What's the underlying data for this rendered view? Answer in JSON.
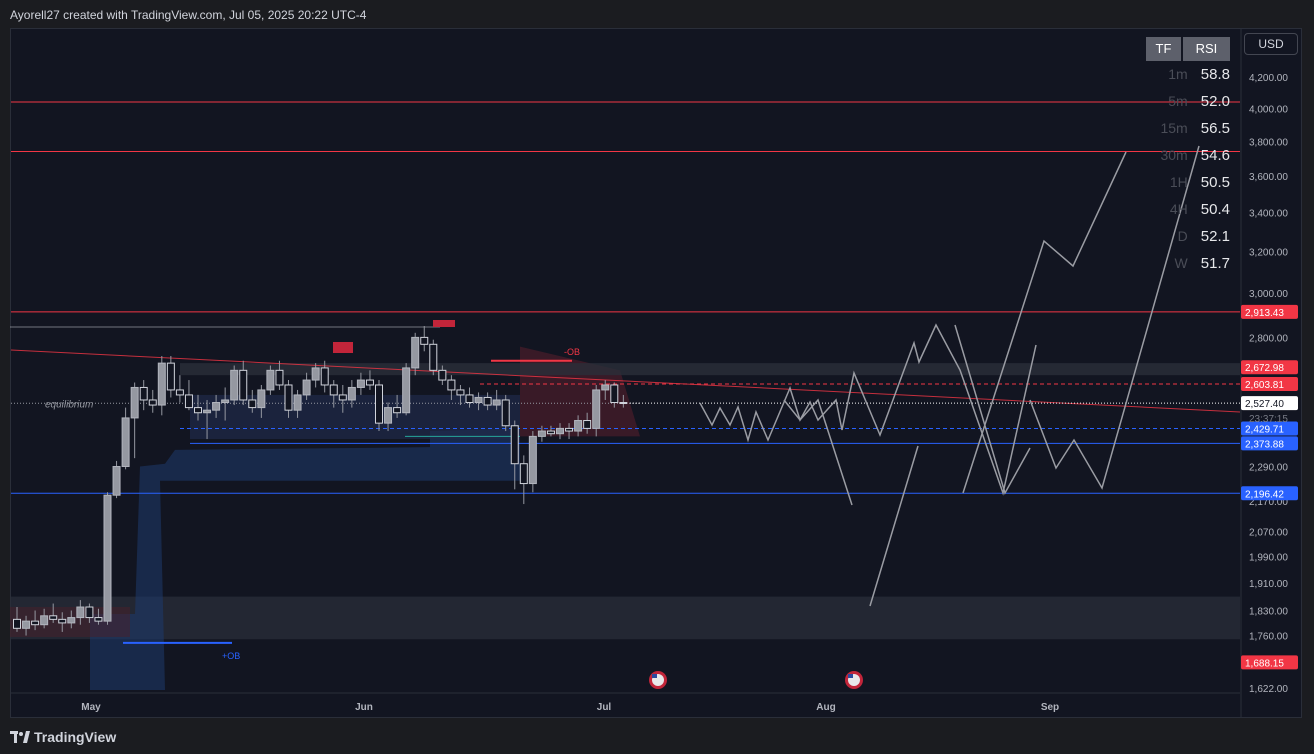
{
  "header": {
    "credit": "Ayorell27 created with TradingView.com, Jul 05, 2025 20:22 UTC-4"
  },
  "footer": {
    "brand": "TradingView"
  },
  "currency_button": "USD",
  "rsi_table": {
    "headers": [
      "TF",
      "RSI"
    ],
    "rows": [
      {
        "tf": "1m",
        "rsi": "58.8"
      },
      {
        "tf": "5m",
        "rsi": "52.0"
      },
      {
        "tf": "15m",
        "rsi": "56.5"
      },
      {
        "tf": "30m",
        "rsi": "54.6"
      },
      {
        "tf": "1H",
        "rsi": "50.5"
      },
      {
        "tf": "4H",
        "rsi": "50.4"
      },
      {
        "tf": "D",
        "rsi": "52.1"
      },
      {
        "tf": "W",
        "rsi": "51.7"
      }
    ]
  },
  "colors": {
    "background": "#121521",
    "up_candle": "#9598a1",
    "down_candle": "#d1d4dc",
    "resistance": "#f23645",
    "support": "#2962ff",
    "projection": "#9a9ca3",
    "zone_blue": "#1e3a6e",
    "zone_gray": "#2a2e39"
  },
  "chart_data": {
    "type": "candlestick",
    "title": "",
    "y_scale": "log",
    "ylim": [
      1622,
      4300
    ],
    "y_ticks": [
      "4,200.00",
      "4,000.00",
      "3,800.00",
      "3,600.00",
      "3,400.00",
      "3,200.00",
      "3,000.00",
      "2,800.00",
      "2,290.00",
      "2,170.00",
      "2,070.00",
      "1,990.00",
      "1,910.00",
      "1,830.00",
      "1,760.00",
      "1,622.00"
    ],
    "x_ticks": [
      "May",
      "Jun",
      "Jul",
      "Aug",
      "Sep"
    ],
    "price_labels": [
      {
        "text": "2,913.43",
        "value": 2913.43,
        "color": "#f23645"
      },
      {
        "text": "2,672.98",
        "value": 2672.98,
        "color": "#f23645"
      },
      {
        "text": "2,603.81",
        "value": 2603.81,
        "color": "#f23645"
      },
      {
        "text": "2,527.40",
        "value": 2527.4,
        "color": "#ffffff"
      },
      {
        "text": "2,429.71",
        "value": 2429.71,
        "color": "#2962ff"
      },
      {
        "text": "2,373.88",
        "value": 2373.88,
        "color": "#2962ff"
      },
      {
        "text": "2,196.42",
        "value": 2196.42,
        "color": "#2962ff"
      },
      {
        "text": "1,688.15",
        "value": 1688.15,
        "color": "#f23645"
      }
    ],
    "countdown": "23:37:15",
    "horizontal_levels": [
      {
        "value": 4040,
        "color": "#f23645"
      },
      {
        "value": 3740,
        "color": "#f23645"
      },
      {
        "value": 2913.43,
        "color": "#f23645"
      },
      {
        "value": 2196.42,
        "color": "#2962ff"
      }
    ],
    "annotations": [
      {
        "text": "equilibrium",
        "value": 2527
      },
      {
        "text": "-OB",
        "value": 2700
      },
      {
        "text": "+OB",
        "value": 1710
      }
    ],
    "candles": [
      {
        "o": 1805,
        "h": 1840,
        "l": 1770,
        "c": 1780
      },
      {
        "o": 1780,
        "h": 1815,
        "l": 1760,
        "c": 1800
      },
      {
        "o": 1800,
        "h": 1830,
        "l": 1775,
        "c": 1790
      },
      {
        "o": 1790,
        "h": 1835,
        "l": 1780,
        "c": 1815
      },
      {
        "o": 1815,
        "h": 1850,
        "l": 1795,
        "c": 1805
      },
      {
        "o": 1805,
        "h": 1825,
        "l": 1770,
        "c": 1795
      },
      {
        "o": 1795,
        "h": 1830,
        "l": 1780,
        "c": 1810
      },
      {
        "o": 1810,
        "h": 1860,
        "l": 1790,
        "c": 1840
      },
      {
        "o": 1840,
        "h": 1850,
        "l": 1795,
        "c": 1810
      },
      {
        "o": 1810,
        "h": 1835,
        "l": 1790,
        "c": 1800
      },
      {
        "o": 1800,
        "h": 2200,
        "l": 1790,
        "c": 2190
      },
      {
        "o": 2190,
        "h": 2310,
        "l": 2180,
        "c": 2290
      },
      {
        "o": 2290,
        "h": 2510,
        "l": 2280,
        "c": 2470
      },
      {
        "o": 2470,
        "h": 2610,
        "l": 2320,
        "c": 2590
      },
      {
        "o": 2590,
        "h": 2620,
        "l": 2500,
        "c": 2540
      },
      {
        "o": 2540,
        "h": 2580,
        "l": 2490,
        "c": 2520
      },
      {
        "o": 2520,
        "h": 2720,
        "l": 2480,
        "c": 2690
      },
      {
        "o": 2690,
        "h": 2720,
        "l": 2550,
        "c": 2580
      },
      {
        "o": 2580,
        "h": 2640,
        "l": 2530,
        "c": 2560
      },
      {
        "o": 2560,
        "h": 2620,
        "l": 2500,
        "c": 2510
      },
      {
        "o": 2510,
        "h": 2560,
        "l": 2460,
        "c": 2490
      },
      {
        "o": 2490,
        "h": 2540,
        "l": 2390,
        "c": 2500
      },
      {
        "o": 2500,
        "h": 2560,
        "l": 2470,
        "c": 2530
      },
      {
        "o": 2530,
        "h": 2590,
        "l": 2460,
        "c": 2540
      },
      {
        "o": 2540,
        "h": 2680,
        "l": 2520,
        "c": 2660
      },
      {
        "o": 2660,
        "h": 2700,
        "l": 2520,
        "c": 2540
      },
      {
        "o": 2540,
        "h": 2580,
        "l": 2490,
        "c": 2510
      },
      {
        "o": 2510,
        "h": 2600,
        "l": 2470,
        "c": 2580
      },
      {
        "o": 2580,
        "h": 2680,
        "l": 2560,
        "c": 2660
      },
      {
        "o": 2660,
        "h": 2700,
        "l": 2580,
        "c": 2600
      },
      {
        "o": 2600,
        "h": 2620,
        "l": 2470,
        "c": 2500
      },
      {
        "o": 2500,
        "h": 2580,
        "l": 2470,
        "c": 2560
      },
      {
        "o": 2560,
        "h": 2650,
        "l": 2540,
        "c": 2620
      },
      {
        "o": 2620,
        "h": 2690,
        "l": 2590,
        "c": 2670
      },
      {
        "o": 2670,
        "h": 2700,
        "l": 2570,
        "c": 2600
      },
      {
        "o": 2600,
        "h": 2620,
        "l": 2510,
        "c": 2560
      },
      {
        "o": 2560,
        "h": 2600,
        "l": 2490,
        "c": 2540
      },
      {
        "o": 2540,
        "h": 2620,
        "l": 2510,
        "c": 2590
      },
      {
        "o": 2590,
        "h": 2650,
        "l": 2560,
        "c": 2620
      },
      {
        "o": 2620,
        "h": 2660,
        "l": 2580,
        "c": 2600
      },
      {
        "o": 2600,
        "h": 2620,
        "l": 2420,
        "c": 2450
      },
      {
        "o": 2450,
        "h": 2530,
        "l": 2420,
        "c": 2510
      },
      {
        "o": 2510,
        "h": 2560,
        "l": 2470,
        "c": 2490
      },
      {
        "o": 2490,
        "h": 2690,
        "l": 2480,
        "c": 2670
      },
      {
        "o": 2670,
        "h": 2820,
        "l": 2640,
        "c": 2800
      },
      {
        "o": 2800,
        "h": 2850,
        "l": 2740,
        "c": 2770
      },
      {
        "o": 2770,
        "h": 2790,
        "l": 2640,
        "c": 2660
      },
      {
        "o": 2660,
        "h": 2680,
        "l": 2600,
        "c": 2620
      },
      {
        "o": 2620,
        "h": 2640,
        "l": 2540,
        "c": 2580
      },
      {
        "o": 2580,
        "h": 2600,
        "l": 2520,
        "c": 2560
      },
      {
        "o": 2560,
        "h": 2590,
        "l": 2510,
        "c": 2530
      },
      {
        "o": 2530,
        "h": 2570,
        "l": 2500,
        "c": 2550
      },
      {
        "o": 2550,
        "h": 2570,
        "l": 2500,
        "c": 2520
      },
      {
        "o": 2520,
        "h": 2580,
        "l": 2500,
        "c": 2540
      },
      {
        "o": 2540,
        "h": 2560,
        "l": 2420,
        "c": 2440
      },
      {
        "o": 2440,
        "h": 2460,
        "l": 2210,
        "c": 2300
      },
      {
        "o": 2300,
        "h": 2330,
        "l": 2160,
        "c": 2230
      },
      {
        "o": 2230,
        "h": 2420,
        "l": 2200,
        "c": 2400
      },
      {
        "o": 2400,
        "h": 2440,
        "l": 2380,
        "c": 2420
      },
      {
        "o": 2420,
        "h": 2440,
        "l": 2400,
        "c": 2410
      },
      {
        "o": 2410,
        "h": 2450,
        "l": 2390,
        "c": 2430
      },
      {
        "o": 2430,
        "h": 2450,
        "l": 2390,
        "c": 2420
      },
      {
        "o": 2420,
        "h": 2480,
        "l": 2400,
        "c": 2460
      },
      {
        "o": 2460,
        "h": 2490,
        "l": 2410,
        "c": 2430
      },
      {
        "o": 2430,
        "h": 2600,
        "l": 2400,
        "c": 2580
      },
      {
        "o": 2580,
        "h": 2620,
        "l": 2540,
        "c": 2600
      },
      {
        "o": 2600,
        "h": 2610,
        "l": 2510,
        "c": 2530
      },
      {
        "o": 2530,
        "h": 2560,
        "l": 2510,
        "c": 2527
      }
    ]
  }
}
